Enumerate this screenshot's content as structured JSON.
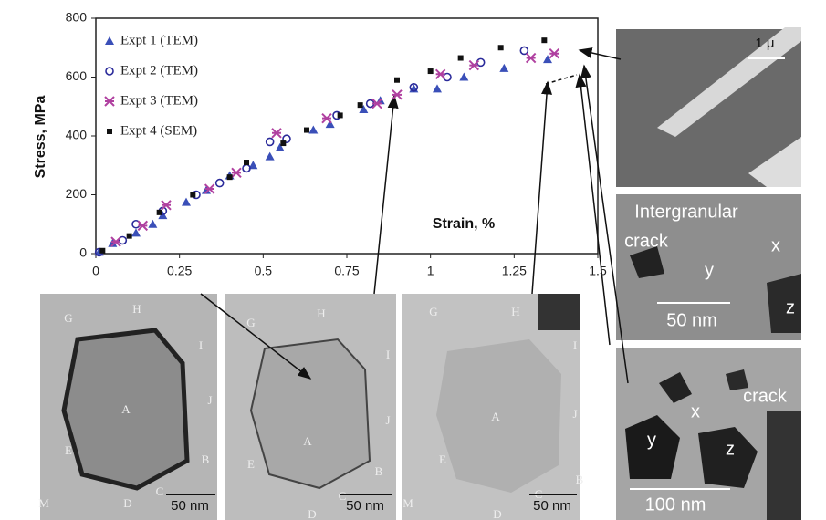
{
  "chart_data": {
    "type": "scatter",
    "x_label": "Strain, %",
    "y_label": "Stress, MPa",
    "xlim": [
      0,
      1.5
    ],
    "xticks": [
      0,
      0.25,
      0.5,
      0.75,
      1,
      1.25,
      1.5
    ],
    "ylim": [
      0,
      800
    ],
    "yticks": [
      0,
      200,
      400,
      600,
      800
    ],
    "legend": "upper left",
    "series": [
      {
        "name": "Expt 1 (TEM)",
        "color": "#3a4fb8",
        "marker": "triangle",
        "x": [
          0.01,
          0.05,
          0.12,
          0.17,
          0.2,
          0.27,
          0.33,
          0.4,
          0.47,
          0.52,
          0.55,
          0.65,
          0.7,
          0.8,
          0.85,
          0.95,
          1.02,
          1.1,
          1.22,
          1.35
        ],
        "values": [
          5,
          35,
          70,
          100,
          130,
          175,
          215,
          265,
          300,
          330,
          360,
          420,
          440,
          490,
          520,
          560,
          560,
          600,
          630,
          660
        ]
      },
      {
        "name": "Expt 2 (TEM)",
        "color": "#2a2a9a",
        "marker": "circle",
        "x": [
          0.01,
          0.08,
          0.12,
          0.2,
          0.3,
          0.37,
          0.45,
          0.52,
          0.57,
          0.72,
          0.82,
          0.95,
          1.05,
          1.15,
          1.28
        ],
        "values": [
          5,
          45,
          100,
          145,
          200,
          240,
          290,
          380,
          390,
          470,
          510,
          565,
          600,
          650,
          690
        ]
      },
      {
        "name": "Expt 3 (TEM)",
        "color": "#b040a0",
        "marker": "star",
        "x": [
          0.06,
          0.14,
          0.21,
          0.34,
          0.42,
          0.54,
          0.69,
          0.84,
          0.9,
          1.03,
          1.13,
          1.3,
          1.37
        ],
        "values": [
          40,
          95,
          165,
          220,
          275,
          410,
          460,
          510,
          540,
          610,
          640,
          665,
          680
        ]
      },
      {
        "name": "Expt 4 (SEM)",
        "color": "#111111",
        "marker": "square",
        "x": [
          0.02,
          0.1,
          0.19,
          0.29,
          0.4,
          0.45,
          0.56,
          0.63,
          0.73,
          0.79,
          0.9,
          1.0,
          1.09,
          1.21,
          1.34
        ],
        "values": [
          10,
          60,
          140,
          200,
          260,
          310,
          375,
          420,
          470,
          505,
          590,
          620,
          665,
          700,
          725
        ]
      }
    ]
  },
  "micrographs": [
    {
      "labels": [
        "G",
        "H",
        "I",
        "A",
        "J",
        "E",
        "B",
        "C",
        "D",
        "M"
      ],
      "scale": "50 nm"
    },
    {
      "labels": [
        "G",
        "H",
        "I",
        "A",
        "J",
        "E",
        "B",
        "C",
        "D"
      ],
      "scale": "50 nm"
    },
    {
      "labels": [
        "G",
        "H",
        "I",
        "A",
        "J",
        "E",
        "B",
        "M",
        "C",
        "D"
      ],
      "scale": "50 nm"
    },
    {
      "labels": [],
      "scale": "1 μ"
    },
    {
      "labels": [
        "Intergranular",
        "crack",
        "x",
        "y",
        "z"
      ],
      "scale": "50 nm"
    },
    {
      "labels": [
        "crack",
        "x",
        "y",
        "z"
      ],
      "scale": "100 nm"
    }
  ]
}
